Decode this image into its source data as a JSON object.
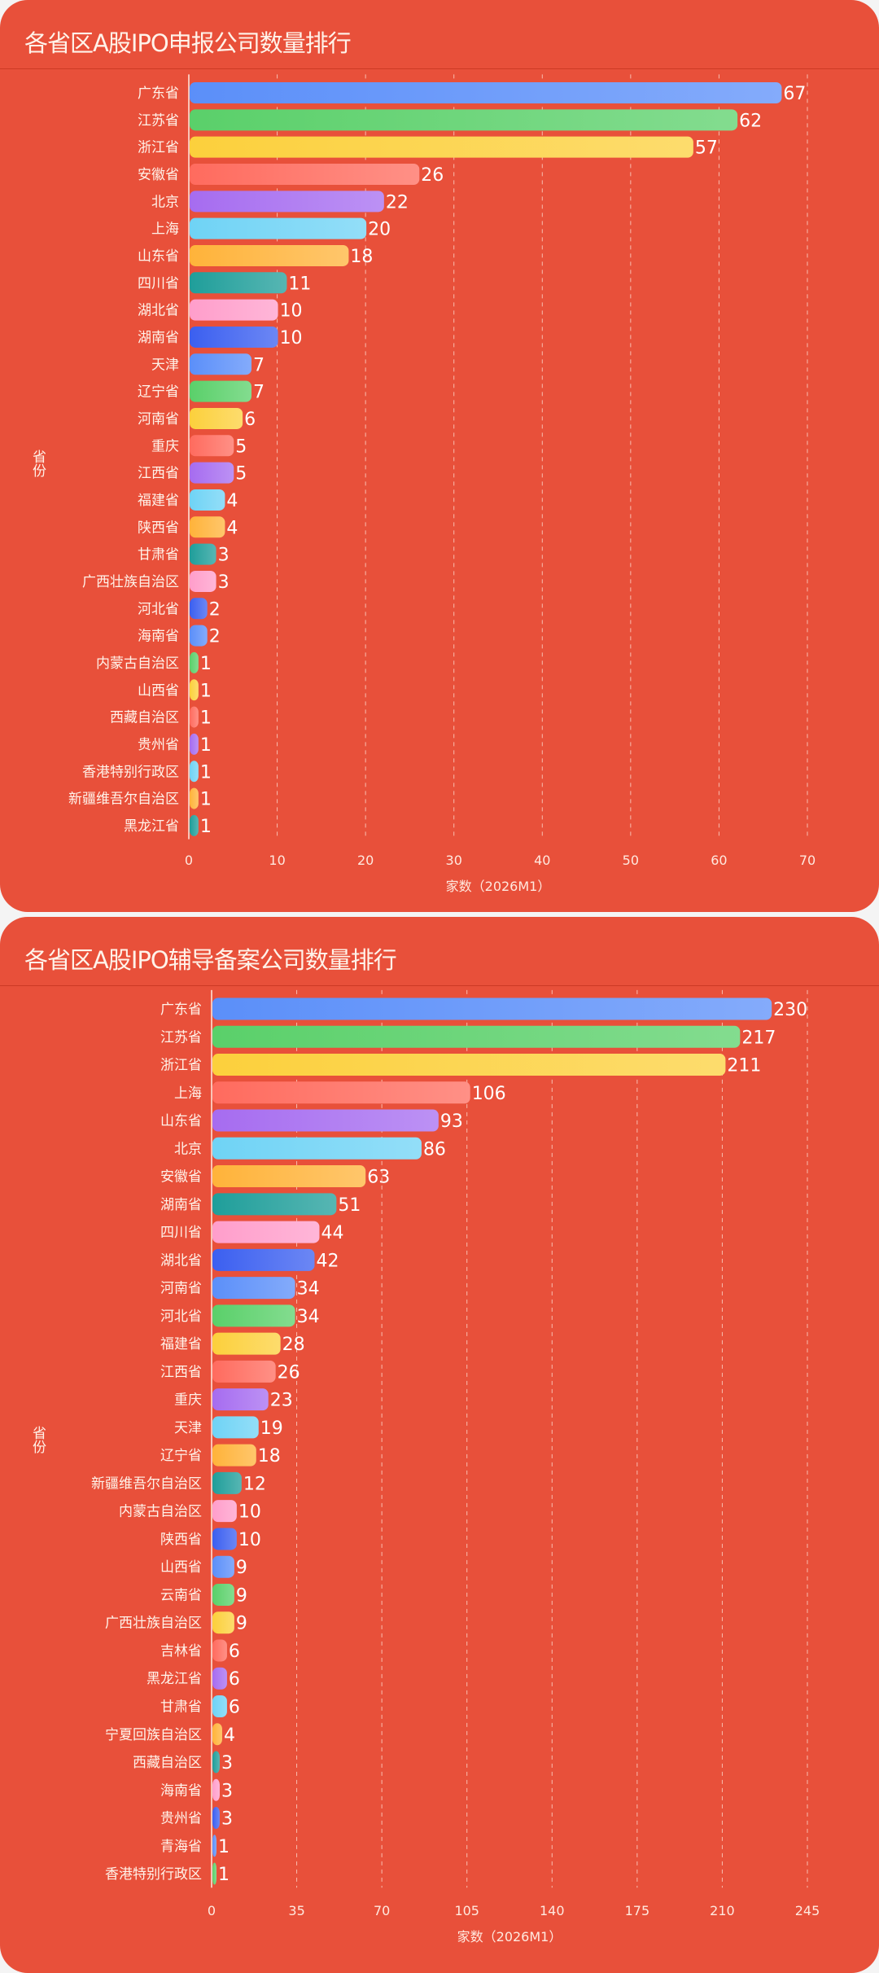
{
  "colors": [
    "#5b8ff9",
    "#5ad06a",
    "#fcd03c",
    "#ff6b5e",
    "#a66cf0",
    "#6fd3f5",
    "#ffb33a",
    "#1f9e9a",
    "#ff9ecb",
    "#3b5ff0"
  ],
  "chart_data": [
    {
      "type": "bar",
      "orientation": "horizontal",
      "title": "各省区A股IPO申报公司数量排行",
      "xlabel": "家数（2026M1）",
      "ylabel": "省份",
      "xlim": [
        0,
        70
      ],
      "xticks": [
        0,
        10,
        20,
        30,
        40,
        50,
        60,
        70
      ],
      "grid": "vertical-dashed",
      "categories": [
        "广东省",
        "江苏省",
        "浙江省",
        "安徽省",
        "北京",
        "上海",
        "山东省",
        "四川省",
        "湖北省",
        "湖南省",
        "天津",
        "辽宁省",
        "河南省",
        "重庆",
        "江西省",
        "福建省",
        "陕西省",
        "甘肃省",
        "广西壮族自治区",
        "河北省",
        "海南省",
        "内蒙古自治区",
        "山西省",
        "西藏自治区",
        "贵州省",
        "香港特别行政区",
        "新疆维吾尔自治区",
        "黑龙江省"
      ],
      "values": [
        67,
        62,
        57,
        26,
        22,
        20,
        18,
        11,
        10,
        10,
        7,
        7,
        6,
        5,
        5,
        4,
        4,
        3,
        3,
        2,
        2,
        1,
        1,
        1,
        1,
        1,
        1,
        1
      ]
    },
    {
      "type": "bar",
      "orientation": "horizontal",
      "title": "各省区A股IPO辅导备案公司数量排行",
      "xlabel": "家数（2026M1）",
      "ylabel": "省份",
      "xlim": [
        0,
        245
      ],
      "xticks": [
        0,
        35,
        70,
        105,
        140,
        175,
        210,
        245
      ],
      "grid": "vertical-dashed",
      "categories": [
        "广东省",
        "江苏省",
        "浙江省",
        "上海",
        "山东省",
        "北京",
        "安徽省",
        "湖南省",
        "四川省",
        "湖北省",
        "河南省",
        "河北省",
        "福建省",
        "江西省",
        "重庆",
        "天津",
        "辽宁省",
        "新疆维吾尔自治区",
        "内蒙古自治区",
        "陕西省",
        "山西省",
        "云南省",
        "广西壮族自治区",
        "吉林省",
        "黑龙江省",
        "甘肃省",
        "宁夏回族自治区",
        "西藏自治区",
        "海南省",
        "贵州省",
        "青海省",
        "香港特别行政区"
      ],
      "values": [
        230,
        217,
        211,
        106,
        93,
        86,
        63,
        51,
        44,
        42,
        34,
        34,
        28,
        26,
        23,
        19,
        18,
        12,
        10,
        10,
        9,
        9,
        9,
        6,
        6,
        6,
        4,
        3,
        3,
        3,
        1,
        1
      ]
    }
  ]
}
